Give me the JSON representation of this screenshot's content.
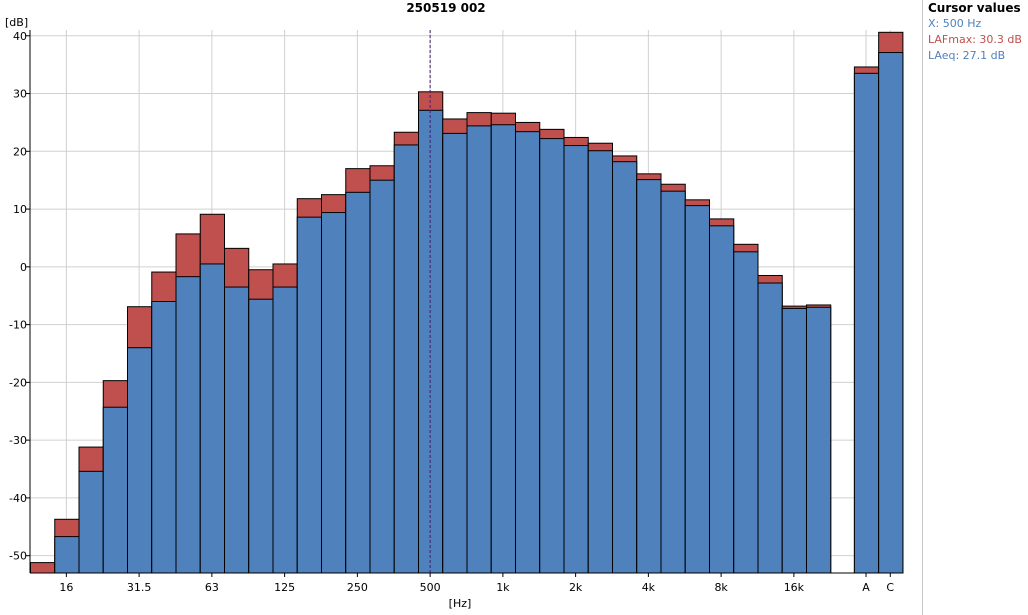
{
  "chart_data": {
    "type": "bar",
    "title": "250519 002",
    "ylabel": "[dB]",
    "xlabel": "[Hz]",
    "ylim": [
      -53,
      41
    ],
    "yticks": [
      40,
      30,
      20,
      10,
      0,
      -10,
      -20,
      -30,
      -40,
      -50
    ],
    "grid": true,
    "stacked_overlay": true,
    "categories": [
      "12.5",
      "16",
      "20",
      "25",
      "31.5",
      "40",
      "50",
      "63",
      "80",
      "100",
      "125",
      "160",
      "200",
      "250",
      "315",
      "400",
      "500",
      "630",
      "800",
      "1k",
      "1.25k",
      "1.6k",
      "2k",
      "2.5k",
      "3.15k",
      "4k",
      "5k",
      "6.3k",
      "8k",
      "10k",
      "12.5k",
      "16k",
      "20k",
      "A",
      "C"
    ],
    "x_tick_labels": [
      {
        "category": "16",
        "label": "16"
      },
      {
        "category": "31.5",
        "label": "31.5"
      },
      {
        "category": "63",
        "label": "63"
      },
      {
        "category": "125",
        "label": "125"
      },
      {
        "category": "250",
        "label": "250"
      },
      {
        "category": "500",
        "label": "500"
      },
      {
        "category": "1k",
        "label": "1k"
      },
      {
        "category": "2k",
        "label": "2k"
      },
      {
        "category": "4k",
        "label": "4k"
      },
      {
        "category": "8k",
        "label": "8k"
      },
      {
        "category": "16k",
        "label": "16k"
      },
      {
        "category": "A",
        "label": "A"
      },
      {
        "category": "C",
        "label": "C"
      }
    ],
    "series": [
      {
        "name": "LAFmax",
        "color": "#c0504d",
        "values": [
          -51.2,
          -43.7,
          -31.2,
          -19.7,
          -6.9,
          -0.9,
          5.7,
          9.1,
          3.2,
          -0.5,
          0.5,
          11.8,
          12.5,
          17.0,
          17.5,
          23.3,
          30.3,
          25.6,
          26.7,
          26.6,
          25.0,
          23.8,
          22.4,
          21.4,
          19.2,
          16.1,
          14.3,
          11.6,
          8.3,
          3.9,
          -1.5,
          -6.8,
          -6.6,
          34.6,
          40.6
        ]
      },
      {
        "name": "LAeq",
        "color": "#4f81bd",
        "values": [
          -53.0,
          -46.7,
          -35.4,
          -24.3,
          -14.0,
          -6.0,
          -1.7,
          0.5,
          -3.5,
          -5.6,
          -3.5,
          8.6,
          9.4,
          12.9,
          15.0,
          21.1,
          27.1,
          23.1,
          24.4,
          24.6,
          23.4,
          22.2,
          21.0,
          20.1,
          18.2,
          15.1,
          13.1,
          10.6,
          7.1,
          2.6,
          -2.8,
          -7.2,
          -7.0,
          33.5,
          37.1
        ]
      }
    ],
    "cursor_category": "500"
  },
  "cursor_panel": {
    "title": "Cursor values",
    "x_text": "X: 500 Hz",
    "lafmax_text": "LAFmax: 30.3 dB",
    "laeq_text": "LAeq: 27.1 dB",
    "x_color": "#4f81bd",
    "lafmax_color": "#c0504d",
    "laeq_color": "#4f81bd"
  },
  "colors": {
    "grid": "#d0d0d0",
    "bar_outline": "#000000",
    "cursor_line": "#4b1a6b"
  }
}
